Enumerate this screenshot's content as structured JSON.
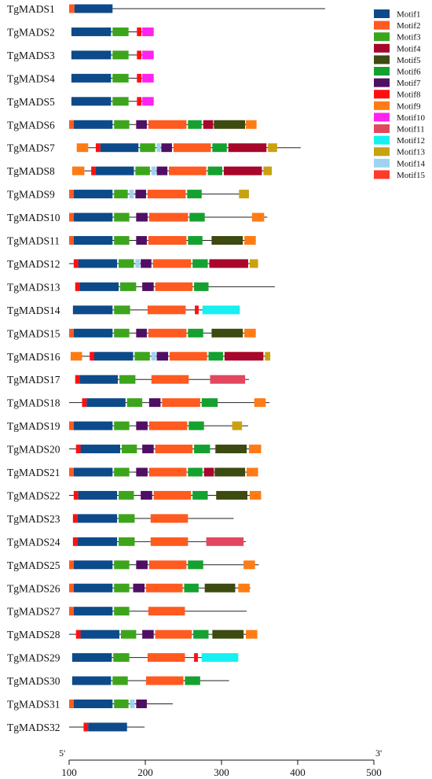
{
  "chart_data": {
    "type": "motif-diagram",
    "x_axis": {
      "min": 100,
      "max": 500,
      "ticks": [
        100,
        200,
        300,
        400,
        500
      ],
      "start_label": "5'",
      "end_label": "3'"
    },
    "motifs": [
      {
        "name": "Motif1",
        "color": "#0d4a8a"
      },
      {
        "name": "Motif2",
        "color": "#ff5a1f"
      },
      {
        "name": "Motif3",
        "color": "#3ca51c"
      },
      {
        "name": "Motif4",
        "color": "#a8062a"
      },
      {
        "name": "Motif5",
        "color": "#3d4a10"
      },
      {
        "name": "Motif6",
        "color": "#15a12f"
      },
      {
        "name": "Motif7",
        "color": "#4f0f63"
      },
      {
        "name": "Motif8",
        "color": "#ff1010"
      },
      {
        "name": "Motif9",
        "color": "#ff7b15"
      },
      {
        "name": "Motif10",
        "color": "#ff22f0"
      },
      {
        "name": "Motif11",
        "color": "#e34760"
      },
      {
        "name": "Motif12",
        "color": "#16f0f0"
      },
      {
        "name": "Motif13",
        "color": "#c9a212"
      },
      {
        "name": "Motif14",
        "color": "#9fd2f0"
      },
      {
        "name": "Motif15",
        "color": "#ff3a2a"
      }
    ],
    "genes": [
      {
        "name": "TgMADS1",
        "start": 100,
        "end": 436,
        "motifs": [
          [
            1,
            100,
            107
          ],
          [
            0,
            107,
            157
          ]
        ]
      },
      {
        "name": "TgMADS2",
        "start": 103,
        "end": 211,
        "motifs": [
          [
            0,
            103,
            155
          ],
          [
            2,
            157,
            178
          ],
          [
            7,
            189,
            195
          ],
          [
            9,
            196,
            211
          ]
        ]
      },
      {
        "name": "TgMADS3",
        "start": 103,
        "end": 211,
        "motifs": [
          [
            0,
            103,
            155
          ],
          [
            2,
            157,
            178
          ],
          [
            7,
            189,
            195
          ],
          [
            9,
            196,
            211
          ]
        ]
      },
      {
        "name": "TgMADS4",
        "start": 103,
        "end": 211,
        "motifs": [
          [
            0,
            103,
            155
          ],
          [
            2,
            157,
            178
          ],
          [
            7,
            189,
            195
          ],
          [
            9,
            196,
            211
          ]
        ]
      },
      {
        "name": "TgMADS5",
        "start": 103,
        "end": 211,
        "motifs": [
          [
            0,
            103,
            155
          ],
          [
            2,
            157,
            178
          ],
          [
            7,
            189,
            195
          ],
          [
            9,
            196,
            211
          ]
        ]
      },
      {
        "name": "TgMADS6",
        "start": 100,
        "end": 346,
        "motifs": [
          [
            1,
            100,
            106
          ],
          [
            0,
            106,
            157
          ],
          [
            2,
            159,
            179
          ],
          [
            6,
            188,
            202
          ],
          [
            1,
            204,
            254
          ],
          [
            5,
            256,
            274
          ],
          [
            3,
            276,
            289
          ],
          [
            4,
            290,
            331
          ],
          [
            8,
            332,
            346
          ]
        ]
      },
      {
        "name": "TgMADS7",
        "start": 110,
        "end": 404,
        "motifs": [
          [
            8,
            110,
            125
          ],
          [
            7,
            135,
            141
          ],
          [
            0,
            141,
            191
          ],
          [
            2,
            193,
            213
          ],
          [
            13,
            215,
            220
          ],
          [
            6,
            221,
            235
          ],
          [
            1,
            237,
            286
          ],
          [
            5,
            288,
            307
          ],
          [
            3,
            309,
            359
          ],
          [
            12,
            361,
            373
          ]
        ]
      },
      {
        "name": "TgMADS8",
        "start": 104,
        "end": 366,
        "motifs": [
          [
            8,
            104,
            120
          ],
          [
            7,
            129,
            135
          ],
          [
            0,
            135,
            185
          ],
          [
            2,
            187,
            206
          ],
          [
            13,
            208,
            214
          ],
          [
            6,
            215,
            229
          ],
          [
            1,
            231,
            280
          ],
          [
            5,
            282,
            301
          ],
          [
            3,
            303,
            353
          ],
          [
            12,
            355,
            366
          ]
        ]
      },
      {
        "name": "TgMADS9",
        "start": 100,
        "end": 336,
        "motifs": [
          [
            1,
            100,
            106
          ],
          [
            0,
            106,
            157
          ],
          [
            2,
            159,
            177
          ],
          [
            13,
            179,
            185
          ],
          [
            6,
            187,
            201
          ],
          [
            1,
            203,
            253
          ],
          [
            5,
            255,
            274
          ],
          [
            12,
            323,
            336
          ]
        ]
      },
      {
        "name": "TgMADS10",
        "start": 100,
        "end": 360,
        "motifs": [
          [
            1,
            100,
            106
          ],
          [
            0,
            106,
            157
          ],
          [
            2,
            159,
            179
          ],
          [
            6,
            188,
            203
          ],
          [
            1,
            205,
            256
          ],
          [
            5,
            258,
            278
          ],
          [
            8,
            340,
            356
          ]
        ]
      },
      {
        "name": "TgMADS11",
        "start": 100,
        "end": 345,
        "motifs": [
          [
            1,
            100,
            106
          ],
          [
            0,
            106,
            157
          ],
          [
            2,
            159,
            179
          ],
          [
            6,
            188,
            202
          ],
          [
            1,
            204,
            254
          ],
          [
            5,
            256,
            275
          ],
          [
            4,
            287,
            328
          ],
          [
            8,
            330,
            345
          ]
        ]
      },
      {
        "name": "TgMADS12",
        "start": 100,
        "end": 348,
        "motifs": [
          [
            7,
            106,
            112
          ],
          [
            0,
            112,
            163
          ],
          [
            2,
            165,
            185
          ],
          [
            13,
            187,
            193
          ],
          [
            6,
            194,
            208
          ],
          [
            1,
            210,
            260
          ],
          [
            5,
            262,
            282
          ],
          [
            3,
            284,
            335
          ],
          [
            12,
            337,
            348
          ]
        ]
      },
      {
        "name": "TgMADS13",
        "start": 108,
        "end": 370,
        "motifs": [
          [
            7,
            108,
            114
          ],
          [
            0,
            114,
            165
          ],
          [
            2,
            167,
            188
          ],
          [
            6,
            196,
            211
          ],
          [
            1,
            213,
            262
          ],
          [
            5,
            264,
            283
          ]
        ]
      },
      {
        "name": "TgMADS14",
        "start": 105,
        "end": 324,
        "motifs": [
          [
            0,
            105,
            157
          ],
          [
            2,
            159,
            180
          ],
          [
            1,
            203,
            253
          ],
          [
            7,
            265,
            270
          ],
          [
            11,
            275,
            324
          ]
        ]
      },
      {
        "name": "TgMADS15",
        "start": 100,
        "end": 345,
        "motifs": [
          [
            1,
            100,
            106
          ],
          [
            0,
            106,
            157
          ],
          [
            2,
            159,
            179
          ],
          [
            6,
            188,
            202
          ],
          [
            1,
            204,
            254
          ],
          [
            5,
            256,
            276
          ],
          [
            4,
            287,
            328
          ],
          [
            8,
            330,
            345
          ]
        ]
      },
      {
        "name": "TgMADS16",
        "start": 102,
        "end": 364,
        "motifs": [
          [
            8,
            102,
            117
          ],
          [
            7,
            127,
            133
          ],
          [
            0,
            133,
            184
          ],
          [
            2,
            186,
            206
          ],
          [
            13,
            208,
            214
          ],
          [
            6,
            215,
            230
          ],
          [
            1,
            232,
            281
          ],
          [
            5,
            283,
            302
          ],
          [
            3,
            304,
            355
          ],
          [
            12,
            357,
            364
          ]
        ]
      },
      {
        "name": "TgMADS17",
        "start": 108,
        "end": 336,
        "motifs": [
          [
            7,
            108,
            114
          ],
          [
            0,
            114,
            164
          ],
          [
            2,
            166,
            187
          ],
          [
            1,
            208,
            257
          ],
          [
            10,
            285,
            331
          ]
        ]
      },
      {
        "name": "TgMADS18",
        "start": 100,
        "end": 363,
        "motifs": [
          [
            7,
            117,
            123
          ],
          [
            0,
            123,
            174
          ],
          [
            2,
            176,
            196
          ],
          [
            6,
            205,
            220
          ],
          [
            1,
            222,
            272
          ],
          [
            5,
            274,
            295
          ],
          [
            8,
            343,
            358
          ]
        ]
      },
      {
        "name": "TgMADS19",
        "start": 100,
        "end": 335,
        "motifs": [
          [
            1,
            100,
            106
          ],
          [
            0,
            106,
            157
          ],
          [
            2,
            159,
            179
          ],
          [
            6,
            188,
            203
          ],
          [
            1,
            205,
            255
          ],
          [
            5,
            257,
            277
          ],
          [
            12,
            314,
            327
          ]
        ]
      },
      {
        "name": "TgMADS20",
        "start": 100,
        "end": 352,
        "motifs": [
          [
            7,
            109,
            115
          ],
          [
            0,
            115,
            167
          ],
          [
            2,
            169,
            189
          ],
          [
            6,
            196,
            211
          ],
          [
            1,
            213,
            262
          ],
          [
            5,
            264,
            285
          ],
          [
            4,
            292,
            333
          ],
          [
            8,
            336,
            352
          ]
        ]
      },
      {
        "name": "TgMADS21",
        "start": 100,
        "end": 348,
        "motifs": [
          [
            1,
            100,
            106
          ],
          [
            0,
            106,
            157
          ],
          [
            2,
            159,
            179
          ],
          [
            6,
            188,
            203
          ],
          [
            1,
            205,
            254
          ],
          [
            5,
            256,
            275
          ],
          [
            3,
            277,
            290
          ],
          [
            4,
            291,
            331
          ],
          [
            8,
            333,
            348
          ]
        ]
      },
      {
        "name": "TgMADS22",
        "start": 100,
        "end": 352,
        "motifs": [
          [
            7,
            106,
            112
          ],
          [
            0,
            112,
            163
          ],
          [
            2,
            165,
            185
          ],
          [
            6,
            194,
            209
          ],
          [
            1,
            211,
            260
          ],
          [
            5,
            262,
            282
          ],
          [
            4,
            293,
            334
          ],
          [
            8,
            337,
            352
          ]
        ]
      },
      {
        "name": "TgMADS23",
        "start": 105,
        "end": 316,
        "motifs": [
          [
            7,
            105,
            111
          ],
          [
            0,
            111,
            163
          ],
          [
            2,
            165,
            186
          ],
          [
            1,
            207,
            256
          ]
        ]
      },
      {
        "name": "TgMADS24",
        "start": 105,
        "end": 332,
        "motifs": [
          [
            7,
            105,
            111
          ],
          [
            0,
            111,
            163
          ],
          [
            2,
            165,
            186
          ],
          [
            1,
            207,
            256
          ],
          [
            10,
            280,
            329
          ]
        ]
      },
      {
        "name": "TgMADS25",
        "start": 100,
        "end": 349,
        "motifs": [
          [
            1,
            100,
            106
          ],
          [
            0,
            106,
            157
          ],
          [
            2,
            159,
            179
          ],
          [
            6,
            188,
            203
          ],
          [
            1,
            205,
            254
          ],
          [
            5,
            256,
            276
          ],
          [
            8,
            329,
            344
          ]
        ]
      },
      {
        "name": "TgMADS26",
        "start": 100,
        "end": 338,
        "motifs": [
          [
            1,
            100,
            106
          ],
          [
            0,
            106,
            157
          ],
          [
            2,
            159,
            179
          ],
          [
            6,
            184,
            199
          ],
          [
            1,
            201,
            249
          ],
          [
            5,
            251,
            270
          ],
          [
            4,
            278,
            318
          ],
          [
            8,
            322,
            337
          ]
        ]
      },
      {
        "name": "TgMADS27",
        "start": 100,
        "end": 333,
        "motifs": [
          [
            1,
            100,
            106
          ],
          [
            0,
            106,
            157
          ],
          [
            2,
            159,
            179
          ],
          [
            1,
            204,
            252
          ]
        ]
      },
      {
        "name": "TgMADS28",
        "start": 100,
        "end": 347,
        "motifs": [
          [
            7,
            109,
            115
          ],
          [
            0,
            115,
            166
          ],
          [
            2,
            168,
            188
          ],
          [
            6,
            196,
            211
          ],
          [
            1,
            213,
            261
          ],
          [
            5,
            263,
            283
          ],
          [
            4,
            288,
            329
          ],
          [
            8,
            332,
            347
          ]
        ]
      },
      {
        "name": "TgMADS29",
        "start": 104,
        "end": 322,
        "motifs": [
          [
            0,
            104,
            156
          ],
          [
            2,
            158,
            179
          ],
          [
            1,
            203,
            252
          ],
          [
            7,
            264,
            269
          ],
          [
            11,
            274,
            322
          ]
        ]
      },
      {
        "name": "TgMADS30",
        "start": 104,
        "end": 310,
        "motifs": [
          [
            0,
            104,
            155
          ],
          [
            2,
            157,
            177
          ],
          [
            1,
            201,
            250
          ],
          [
            5,
            252,
            272
          ]
        ]
      },
      {
        "name": "TgMADS31",
        "start": 100,
        "end": 236,
        "motifs": [
          [
            1,
            100,
            106
          ],
          [
            0,
            106,
            157
          ],
          [
            2,
            159,
            178
          ],
          [
            13,
            180,
            186
          ],
          [
            6,
            188,
            202
          ]
        ]
      },
      {
        "name": "TgMADS32",
        "start": 100,
        "end": 199,
        "motifs": [
          [
            7,
            119,
            125
          ],
          [
            0,
            125,
            176
          ]
        ]
      }
    ]
  }
}
